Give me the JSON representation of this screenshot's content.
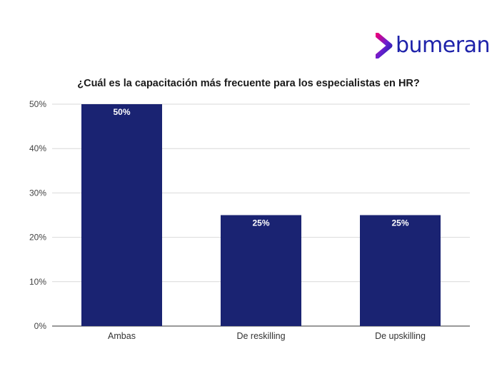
{
  "brand": {
    "logo_text": "bumeran",
    "logo_icon": "chevron-logo-icon",
    "colors": {
      "primary": "#1e22aa",
      "accent": "#e6007e"
    }
  },
  "chart_data": {
    "type": "bar",
    "title": "¿Cuál es la capacitación más frecuente para los especialistas en HR?",
    "xlabel": "",
    "ylabel": "",
    "categories": [
      "Ambas",
      "De reskilling",
      "De upskilling"
    ],
    "values": [
      50,
      25,
      25
    ],
    "value_labels": [
      "50%",
      "25%",
      "25%"
    ],
    "ylim": [
      0,
      50
    ],
    "yticks": [
      0,
      10,
      20,
      30,
      40,
      50
    ],
    "ytick_labels": [
      "0%",
      "10%",
      "20%",
      "30%",
      "40%",
      "50%"
    ],
    "grid": true,
    "bar_color": "#1a2372"
  }
}
